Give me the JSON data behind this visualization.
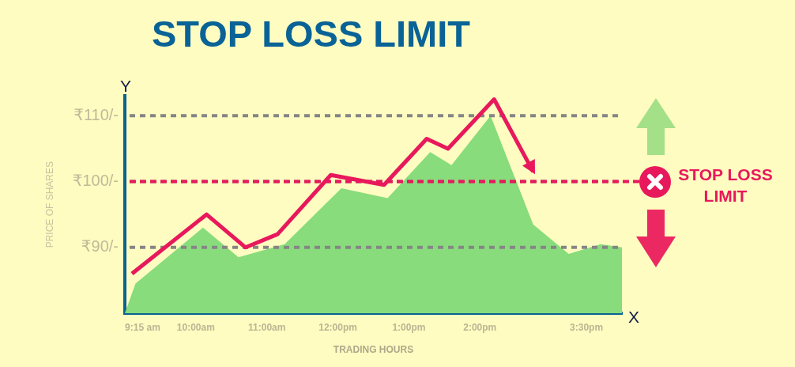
{
  "chart_data": {
    "type": "area",
    "title": "STOP LOSS LIMIT",
    "xlabel": "TRADING HOURS",
    "ylabel": "PRICE OF SHARES",
    "annotations": [
      "Y",
      "X"
    ],
    "xlim": [
      9,
      16
    ],
    "xticks": [
      {
        "value": 9.25,
        "label": "9:15 am"
      },
      {
        "value": 10,
        "label": "10:00am"
      },
      {
        "value": 11,
        "label": "11:00am"
      },
      {
        "value": 12,
        "label": "12:00pm"
      },
      {
        "value": 13,
        "label": "1:00pm"
      },
      {
        "value": 14,
        "label": "2:00pm"
      },
      {
        "value": 15.5,
        "label": "3:30pm"
      }
    ],
    "ylim": [
      80,
      113
    ],
    "yticks": [
      {
        "value": 90,
        "label": "₹90/-"
      },
      {
        "value": 100,
        "label": "₹100/-"
      },
      {
        "value": 110,
        "label": "₹110/-"
      }
    ],
    "grid": "y",
    "series": [
      {
        "type": "area",
        "color": "#88dc7c",
        "x": [
          9,
          9.15,
          10.1,
          10.6,
          11.25,
          12.05,
          12.7,
          13.3,
          13.6,
          14.15,
          14.75,
          15.25,
          15.7,
          16
        ],
        "values": [
          80,
          84.5,
          93,
          88.5,
          90.5,
          99,
          97.5,
          104.5,
          102.5,
          110,
          93.5,
          89,
          90.5,
          90
        ]
      },
      {
        "type": "line",
        "color": "#e8185c",
        "x": [
          9.1,
          10.15,
          10.7,
          11.15,
          11.9,
          12.65,
          13.25,
          13.55,
          14.2,
          14.75
        ],
        "values": [
          86,
          95,
          90,
          92,
          101,
          99.5,
          106.5,
          105,
          112.5,
          101.5
        ]
      }
    ],
    "ref_lines": [
      {
        "axis": "y",
        "value": 100,
        "label": "STOP LOSS LIMIT",
        "color": "#e8185c",
        "line_style": "dashed"
      }
    ]
  }
}
